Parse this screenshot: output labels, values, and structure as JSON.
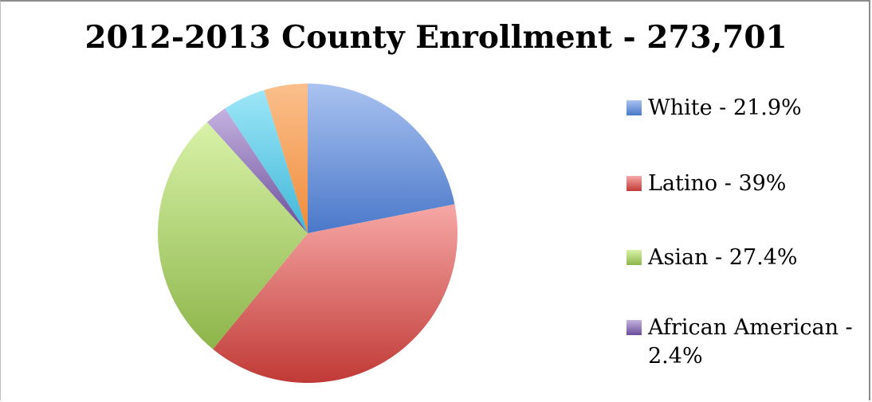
{
  "chart_data": {
    "type": "pie",
    "title": "2012-2013 County Enrollment - 273,701",
    "legend_position": "right",
    "slices": [
      {
        "label": "White - 21.9%",
        "value": 21.9,
        "color_top": "#a9c2f0",
        "color_bottom": "#4a78c9",
        "color": "#4f81bd"
      },
      {
        "label": "Latino - 39%",
        "value": 39.0,
        "color_top": "#f6a8a6",
        "color_bottom": "#c03a36",
        "color": "#c0504d"
      },
      {
        "label": "Asian - 27.4%",
        "value": 27.4,
        "color_top": "#d8f2a8",
        "color_bottom": "#8db54a",
        "color": "#9bbb59"
      },
      {
        "label": "African American - 2.4%",
        "value": 2.4,
        "color_top": "#c5b2e0",
        "color_bottom": "#6a4e99",
        "color": "#8064a2"
      },
      {
        "label": "",
        "value": 4.6,
        "color_top": "#9de6f7",
        "color_bottom": "#3fb7d8",
        "color": "#4bacc6"
      },
      {
        "label": "",
        "value": 4.7,
        "color_top": "#fbbf8c",
        "color_bottom": "#ef8c3a",
        "color": "#f79646"
      }
    ],
    "legend_entries": [
      {
        "label_line1": "White - 21.9%",
        "label_line2": "",
        "color": "#4f81bd"
      },
      {
        "label_line1": "Latino - 39%",
        "label_line2": "",
        "color": "#c0504d"
      },
      {
        "label_line1": "Asian - 27.4%",
        "label_line2": "",
        "color": "#9bbb59"
      },
      {
        "label_line1": "African American -",
        "label_line2": "2.4%",
        "color": "#8064a2"
      }
    ]
  }
}
